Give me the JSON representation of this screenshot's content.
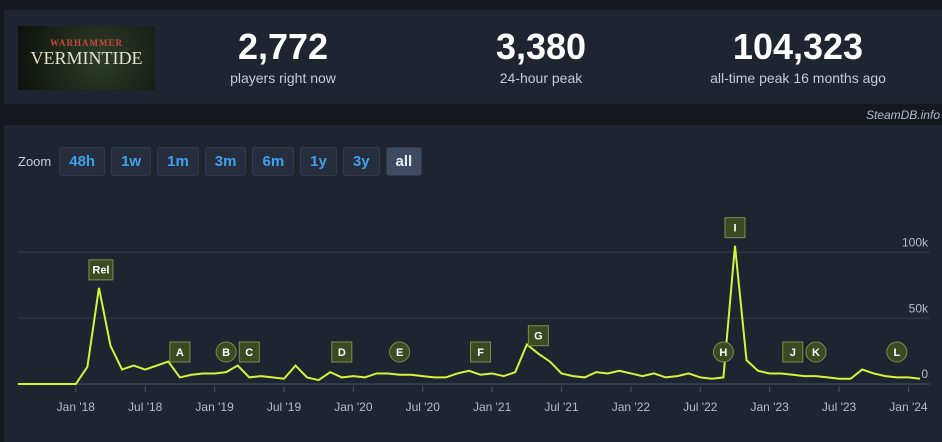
{
  "header": {
    "logo": {
      "top": "WARHAMMER",
      "name": "VERMINTIDE"
    },
    "stats": [
      {
        "value": "2,772",
        "label": "players right now"
      },
      {
        "value": "3,380",
        "label": "24-hour peak"
      },
      {
        "value": "104,323",
        "label": "all-time peak 16 months ago"
      }
    ]
  },
  "source": "SteamDB.info",
  "zoom": {
    "label": "Zoom",
    "buttons": [
      "48h",
      "1w",
      "1m",
      "3m",
      "6m",
      "1y",
      "3y",
      "all"
    ],
    "active": "all"
  },
  "chart_data": {
    "type": "line",
    "x": [
      "2017-08",
      "2017-09",
      "2017-10",
      "2017-11",
      "2017-12",
      "2018-01",
      "2018-02",
      "2018-03",
      "2018-04",
      "2018-05",
      "2018-06",
      "2018-07",
      "2018-08",
      "2018-09",
      "2018-10",
      "2018-11",
      "2018-12",
      "2019-01",
      "2019-02",
      "2019-03",
      "2019-04",
      "2019-05",
      "2019-06",
      "2019-07",
      "2019-08",
      "2019-09",
      "2019-10",
      "2019-11",
      "2019-12",
      "2020-01",
      "2020-02",
      "2020-03",
      "2020-04",
      "2020-05",
      "2020-06",
      "2020-07",
      "2020-08",
      "2020-09",
      "2020-10",
      "2020-11",
      "2020-12",
      "2021-01",
      "2021-02",
      "2021-03",
      "2021-04",
      "2021-05",
      "2021-06",
      "2021-07",
      "2021-08",
      "2021-09",
      "2021-10",
      "2021-11",
      "2021-12",
      "2022-01",
      "2022-02",
      "2022-03",
      "2022-04",
      "2022-05",
      "2022-06",
      "2022-07",
      "2022-08",
      "2022-09",
      "2022-10",
      "2022-11",
      "2022-12",
      "2023-01",
      "2023-02",
      "2023-03",
      "2023-04",
      "2023-05",
      "2023-06",
      "2023-07",
      "2023-08",
      "2023-09",
      "2023-10",
      "2023-11",
      "2023-12",
      "2024-01",
      "2024-02"
    ],
    "series": [
      {
        "color": "#d4f53c",
        "values": [
          0,
          0,
          0,
          0,
          0,
          0,
          13000,
          73000,
          29000,
          11000,
          14000,
          11000,
          14000,
          17000,
          5000,
          7000,
          8000,
          8000,
          9000,
          14000,
          5000,
          6000,
          5000,
          4000,
          14000,
          5000,
          3000,
          9000,
          5000,
          6000,
          5000,
          8000,
          8000,
          7000,
          7000,
          6000,
          5000,
          5000,
          8000,
          10000,
          7000,
          8000,
          6000,
          9000,
          30000,
          23000,
          17000,
          8000,
          6000,
          5000,
          9000,
          8000,
          10000,
          8000,
          6000,
          8000,
          5000,
          6000,
          8000,
          5000,
          4000,
          5000,
          105000,
          18000,
          10000,
          8000,
          8000,
          7000,
          6000,
          6000,
          5000,
          4000,
          4000,
          11000,
          8000,
          6000,
          5000,
          5000,
          4000
        ]
      }
    ],
    "xlim": [
      "2017-08",
      "2024-02"
    ],
    "xticks": [
      {
        "value": "2018-01",
        "label": "Jan '18"
      },
      {
        "value": "2018-07",
        "label": "Jul '18"
      },
      {
        "value": "2019-01",
        "label": "Jan '19"
      },
      {
        "value": "2019-07",
        "label": "Jul '19"
      },
      {
        "value": "2020-01",
        "label": "Jan '20"
      },
      {
        "value": "2020-07",
        "label": "Jul '20"
      },
      {
        "value": "2021-01",
        "label": "Jan '21"
      },
      {
        "value": "2021-07",
        "label": "Jul '21"
      },
      {
        "value": "2022-01",
        "label": "Jan '22"
      },
      {
        "value": "2022-07",
        "label": "Jul '22"
      },
      {
        "value": "2023-01",
        "label": "Jan '23"
      },
      {
        "value": "2023-07",
        "label": "Jul '23"
      },
      {
        "value": "2024-01",
        "label": "Jan '24"
      }
    ],
    "ylim": [
      0,
      145000
    ],
    "yticks": [
      0,
      {
        "value": 50000,
        "label": "50k"
      },
      {
        "value": 100000,
        "label": "100k"
      }
    ],
    "grid": true,
    "annotations": [
      {
        "x": "2018-03",
        "label": "Rel",
        "shape": "square"
      },
      {
        "x": "2018-10",
        "label": "A",
        "shape": "square"
      },
      {
        "x": "2019-02",
        "label": "B",
        "shape": "circle"
      },
      {
        "x": "2019-04",
        "label": "C",
        "shape": "square"
      },
      {
        "x": "2019-12",
        "label": "D",
        "shape": "square"
      },
      {
        "x": "2020-05",
        "label": "E",
        "shape": "circle"
      },
      {
        "x": "2020-12",
        "label": "F",
        "shape": "square"
      },
      {
        "x": "2021-05",
        "label": "G",
        "shape": "square"
      },
      {
        "x": "2022-09",
        "label": "H",
        "shape": "circle"
      },
      {
        "x": "2022-10",
        "label": "I",
        "shape": "square"
      },
      {
        "x": "2023-03",
        "label": "J",
        "shape": "square"
      },
      {
        "x": "2023-05",
        "label": "K",
        "shape": "circle"
      },
      {
        "x": "2023-12",
        "label": "L",
        "shape": "circle"
      }
    ]
  }
}
